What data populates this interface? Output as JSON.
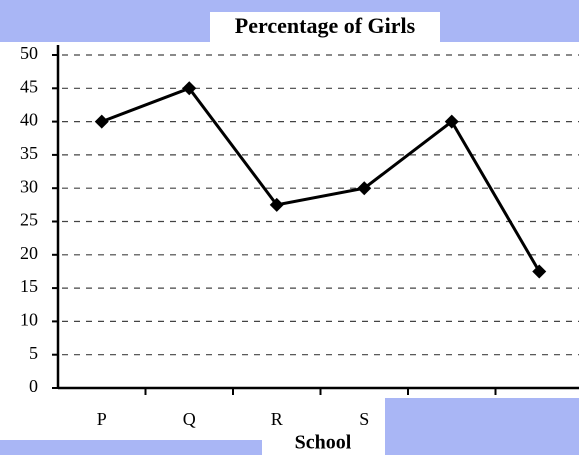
{
  "chart_data": {
    "type": "line",
    "title": "Percentage of Girls",
    "x_label": "School",
    "categories": [
      "P",
      "Q",
      "R",
      "S",
      null,
      null
    ],
    "values": [
      40,
      45,
      27.5,
      30,
      40,
      17.5
    ],
    "color": "#000000",
    "ylim": [
      0,
      50
    ],
    "yticks": [
      0,
      5,
      10,
      15,
      20,
      25,
      30,
      35,
      40,
      45,
      50
    ],
    "grid": true
  }
}
